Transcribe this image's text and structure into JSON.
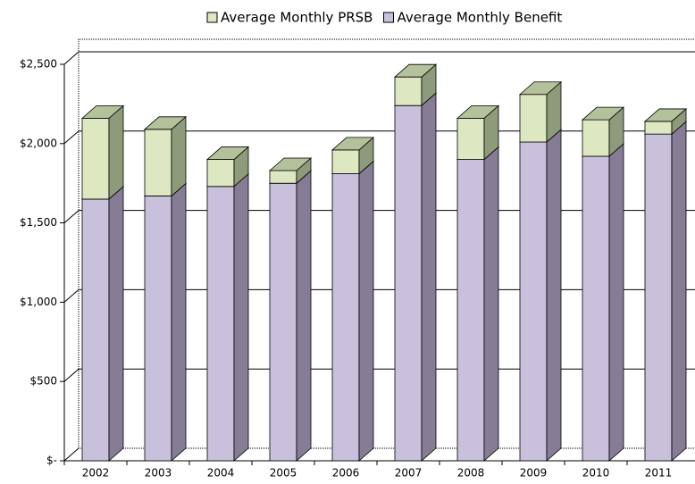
{
  "chart_data": {
    "type": "bar",
    "stacked": true,
    "three_d": true,
    "categories": [
      "2002",
      "2003",
      "2004",
      "2005",
      "2006",
      "2007",
      "2008",
      "2009",
      "2010",
      "2011"
    ],
    "series": [
      {
        "name": "Average Monthly Benefit",
        "color": "#c9c0dc",
        "side_color": "#877c96",
        "top_color": "#a99fba",
        "values": [
          1650,
          1670,
          1730,
          1750,
          1810,
          2240,
          1900,
          2010,
          1920,
          2060
        ]
      },
      {
        "name": "Average Monthly PRSB",
        "color": "#dde8c2",
        "side_color": "#8e9b7a",
        "top_color": "#b4c29c",
        "values": [
          510,
          420,
          170,
          80,
          150,
          180,
          260,
          300,
          230,
          80
        ]
      }
    ],
    "legend_order": [
      1,
      0
    ],
    "ylim": [
      0,
      2500
    ],
    "yticks": [
      {
        "value": 0,
        "label": "$-"
      },
      {
        "value": 500,
        "label": "$500"
      },
      {
        "value": 1000,
        "label": "$1,000"
      },
      {
        "value": 1500,
        "label": "$1,500"
      },
      {
        "value": 2000,
        "label": "$2,000"
      },
      {
        "value": 2500,
        "label": "$2,500"
      }
    ],
    "grid": true,
    "legend_position": "top"
  }
}
